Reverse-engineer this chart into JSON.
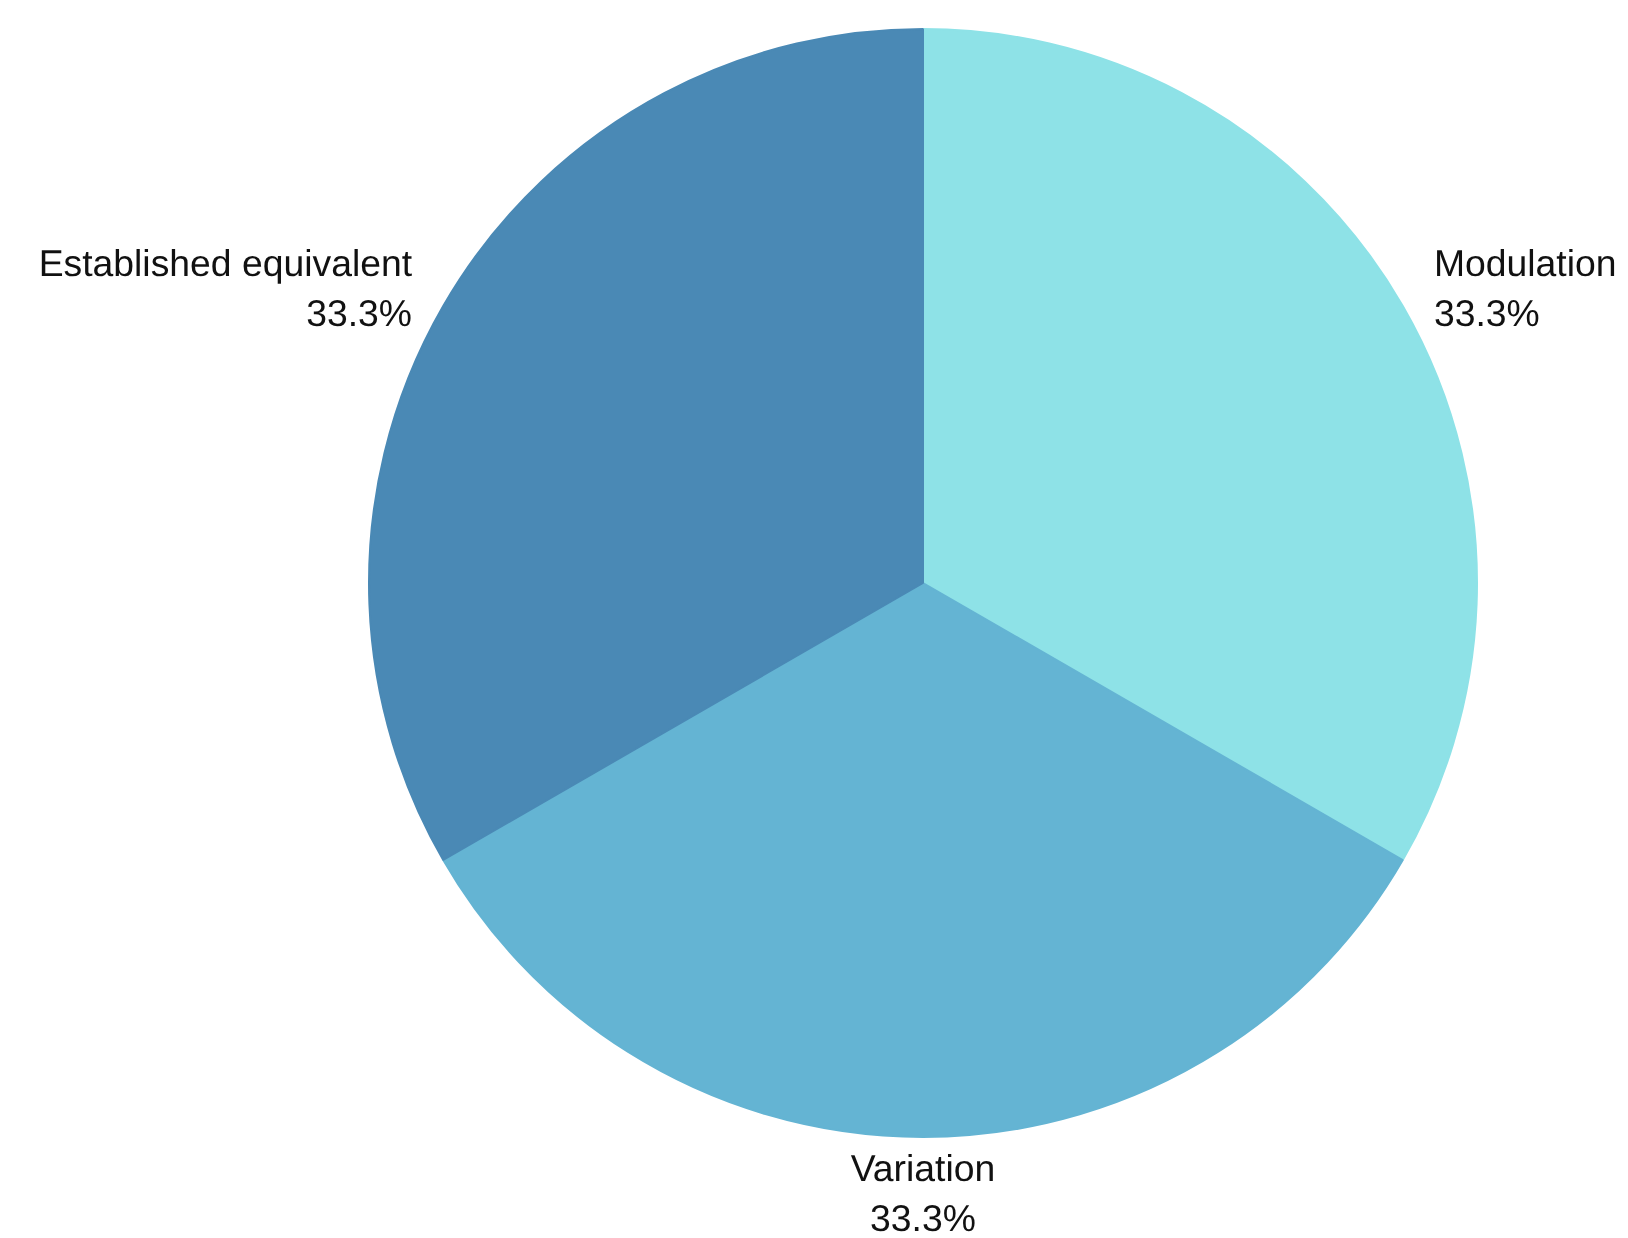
{
  "chart_data": {
    "type": "pie",
    "categories": [
      "Modulation",
      "Variation",
      "Established equivalent"
    ],
    "values": [
      33.3,
      33.3,
      33.3
    ],
    "value_labels": [
      "33.3%",
      "33.3%",
      "33.3%"
    ],
    "colors": [
      "#8ee2e7",
      "#64b4d3",
      "#4a89b5"
    ]
  }
}
